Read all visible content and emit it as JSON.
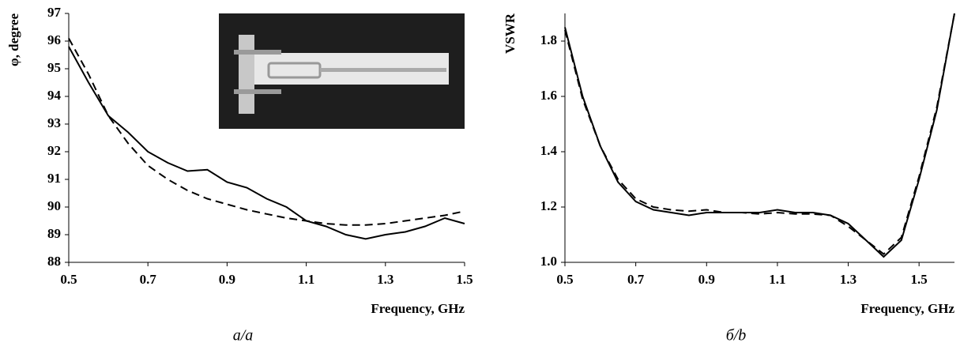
{
  "chart_data": [
    {
      "type": "line",
      "xlabel": "Frequency, GHz",
      "ylabel": "φ, degree",
      "caption": "a/a",
      "x": [
        0.5,
        0.55,
        0.6,
        0.65,
        0.7,
        0.75,
        0.8,
        0.85,
        0.9,
        0.95,
        1.0,
        1.05,
        1.1,
        1.15,
        1.2,
        1.25,
        1.3,
        1.35,
        1.4,
        1.45,
        1.5
      ],
      "series": [
        {
          "color": "#000000",
          "dash": false,
          "values": [
            95.8,
            94.5,
            93.3,
            92.7,
            92.0,
            91.6,
            91.3,
            91.35,
            90.9,
            90.7,
            90.3,
            90.0,
            89.5,
            89.3,
            89.0,
            88.85,
            89.0,
            89.1,
            89.3,
            89.6,
            89.4
          ]
        },
        {
          "color": "#000000",
          "dash": true,
          "values": [
            96.1,
            94.8,
            93.3,
            92.3,
            91.5,
            91.0,
            90.6,
            90.3,
            90.1,
            89.9,
            89.75,
            89.6,
            89.5,
            89.4,
            89.35,
            89.35,
            89.4,
            89.5,
            89.6,
            89.7,
            89.85
          ]
        }
      ],
      "xlim": [
        0.5,
        1.5
      ],
      "ylim": [
        88,
        97
      ],
      "xticks": [
        0.5,
        0.7,
        0.9,
        1.1,
        1.3,
        1.5
      ],
      "yticks": [
        88,
        89,
        90,
        91,
        92,
        93,
        94,
        95,
        96,
        97
      ]
    },
    {
      "type": "line",
      "xlabel": "Frequency, GHz",
      "ylabel": "VSWR",
      "caption": "б/b",
      "x": [
        0.5,
        0.55,
        0.6,
        0.65,
        0.7,
        0.75,
        0.8,
        0.85,
        0.9,
        0.95,
        1.0,
        1.05,
        1.1,
        1.15,
        1.2,
        1.25,
        1.3,
        1.35,
        1.4,
        1.45,
        1.5,
        1.55,
        1.6
      ],
      "series": [
        {
          "color": "#000000",
          "dash": false,
          "values": [
            1.85,
            1.6,
            1.42,
            1.29,
            1.22,
            1.19,
            1.18,
            1.17,
            1.18,
            1.18,
            1.18,
            1.18,
            1.19,
            1.18,
            1.18,
            1.17,
            1.14,
            1.08,
            1.02,
            1.08,
            1.3,
            1.55,
            1.9
          ]
        },
        {
          "color": "#000000",
          "dash": true,
          "values": [
            1.84,
            1.59,
            1.42,
            1.3,
            1.23,
            1.2,
            1.19,
            1.185,
            1.19,
            1.18,
            1.18,
            1.175,
            1.18,
            1.175,
            1.175,
            1.17,
            1.13,
            1.08,
            1.03,
            1.09,
            1.31,
            1.56,
            1.9
          ]
        }
      ],
      "xlim": [
        0.5,
        1.6
      ],
      "ylim": [
        1.0,
        1.9
      ],
      "xticks": [
        0.5,
        0.7,
        0.9,
        1.1,
        1.3,
        1.5
      ],
      "yticks": [
        {
          "value": 1.0,
          "label": "1.0"
        },
        {
          "value": 1.2,
          "label": "1.2"
        },
        {
          "value": 1.4,
          "label": "1.4"
        },
        {
          "value": 1.6,
          "label": "1.6"
        },
        {
          "value": 1.8,
          "label": "1.8"
        }
      ]
    }
  ]
}
